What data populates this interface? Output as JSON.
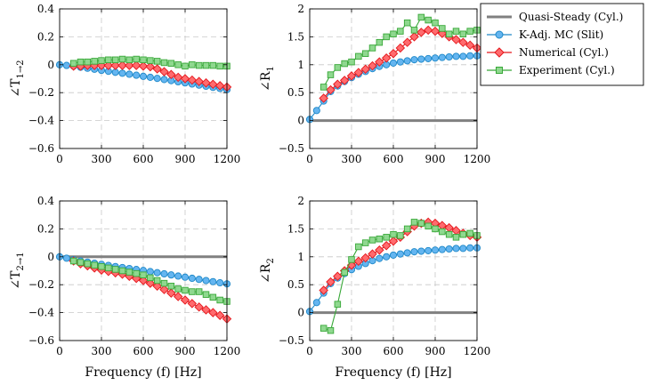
{
  "legend": {
    "position": "top-right",
    "entries": [
      {
        "label": "Quasi-Steady (Cyl.)",
        "color": "#808080",
        "marker": "none"
      },
      {
        "label": "K-Adj. MC (Slit)",
        "color": "#1e88c8",
        "fill": "#64b5f0",
        "marker": "circle"
      },
      {
        "label": "Numerical (Cyl.)",
        "color": "#e5161b",
        "fill": "#ff6b6e",
        "marker": "diamond"
      },
      {
        "label": "Experiment (Cyl.)",
        "color": "#38a838",
        "fill": "#8fd88f",
        "marker": "square"
      }
    ]
  },
  "chart_data": [
    {
      "type": "line",
      "ylabel": "∠T",
      "ylabel_sub": "1→2",
      "xlabel": "",
      "xlim": [
        0,
        1200
      ],
      "ylim": [
        -0.6,
        0.4
      ],
      "xticks": [
        0,
        300,
        600,
        900,
        1200
      ],
      "yticks": [
        -0.6,
        -0.4,
        -0.2,
        0,
        0.2,
        0.4
      ],
      "ytick_labels": [
        "−0.6",
        "−0.4",
        "−0.2",
        "0",
        "0.2",
        "0.4"
      ],
      "grid": true,
      "series": [
        {
          "name": "K-Adj. MC (Slit)",
          "x": [
            0,
            50,
            100,
            150,
            200,
            250,
            300,
            350,
            400,
            450,
            500,
            550,
            600,
            650,
            700,
            750,
            800,
            850,
            900,
            950,
            1000,
            1050,
            1100,
            1150,
            1200
          ],
          "y": [
            0,
            -0.005,
            -0.01,
            -0.018,
            -0.025,
            -0.032,
            -0.04,
            -0.047,
            -0.054,
            -0.061,
            -0.068,
            -0.075,
            -0.083,
            -0.09,
            -0.098,
            -0.106,
            -0.114,
            -0.122,
            -0.13,
            -0.138,
            -0.146,
            -0.154,
            -0.162,
            -0.17,
            -0.178
          ]
        },
        {
          "name": "Numerical (Cyl.)",
          "x": [
            100,
            150,
            200,
            250,
            300,
            350,
            400,
            450,
            500,
            550,
            600,
            650,
            700,
            750,
            800,
            850,
            900,
            950,
            1000,
            1050,
            1100,
            1150,
            1200
          ],
          "y": [
            -0.01,
            -0.01,
            -0.005,
            -0.005,
            -0.005,
            -0.005,
            -0.005,
            -0.005,
            -0.005,
            -0.005,
            -0.01,
            -0.015,
            -0.03,
            -0.05,
            -0.07,
            -0.09,
            -0.1,
            -0.11,
            -0.12,
            -0.13,
            -0.14,
            -0.15,
            -0.16
          ]
        },
        {
          "name": "Experiment (Cyl.)",
          "x": [
            100,
            150,
            200,
            250,
            300,
            350,
            400,
            450,
            500,
            550,
            600,
            650,
            700,
            750,
            800,
            850,
            900,
            950,
            1000,
            1050,
            1100,
            1150,
            1200
          ],
          "y": [
            0.01,
            0.02,
            0.02,
            0.025,
            0.03,
            0.035,
            0.035,
            0.04,
            0.035,
            0.04,
            0.035,
            0.03,
            0.025,
            0.015,
            0.01,
            0,
            -0.01,
            0,
            -0.005,
            -0.005,
            -0.005,
            -0.01,
            -0.01
          ]
        }
      ]
    },
    {
      "type": "line",
      "ylabel": "∠R",
      "ylabel_sub": "1",
      "xlabel": "",
      "xlim": [
        0,
        1200
      ],
      "ylim": [
        -0.5,
        2
      ],
      "xticks": [
        0,
        300,
        600,
        900,
        1200
      ],
      "yticks": [
        -0.5,
        0,
        0.5,
        1,
        1.5,
        2
      ],
      "ytick_labels": [
        "−0.5",
        "0",
        "0.5",
        "1",
        "1.5",
        "2"
      ],
      "grid": true,
      "series": [
        {
          "name": "Quasi-Steady (Cyl.)",
          "x": [
            0,
            1200
          ],
          "y": [
            0,
            0
          ]
        },
        {
          "name": "K-Adj. MC (Slit)",
          "x": [
            0,
            50,
            100,
            150,
            200,
            250,
            300,
            350,
            400,
            450,
            500,
            550,
            600,
            650,
            700,
            750,
            800,
            850,
            900,
            950,
            1000,
            1050,
            1100,
            1150,
            1200
          ],
          "y": [
            0.02,
            0.18,
            0.35,
            0.52,
            0.62,
            0.7,
            0.77,
            0.83,
            0.88,
            0.93,
            0.97,
            1.0,
            1.03,
            1.05,
            1.07,
            1.09,
            1.1,
            1.11,
            1.12,
            1.13,
            1.14,
            1.15,
            1.15,
            1.16,
            1.16
          ]
        },
        {
          "name": "Numerical (Cyl.)",
          "x": [
            100,
            150,
            200,
            250,
            300,
            350,
            400,
            450,
            500,
            550,
            600,
            650,
            700,
            750,
            800,
            850,
            900,
            950,
            1000,
            1050,
            1100,
            1150,
            1200
          ],
          "y": [
            0.4,
            0.55,
            0.65,
            0.72,
            0.8,
            0.86,
            0.92,
            0.98,
            1.05,
            1.12,
            1.2,
            1.3,
            1.4,
            1.5,
            1.58,
            1.62,
            1.6,
            1.56,
            1.5,
            1.45,
            1.4,
            1.35,
            1.3
          ]
        },
        {
          "name": "Experiment (Cyl.)",
          "x": [
            100,
            150,
            200,
            250,
            300,
            350,
            400,
            450,
            500,
            550,
            600,
            650,
            700,
            750,
            800,
            850,
            900,
            950,
            1000,
            1050,
            1100,
            1150,
            1200
          ],
          "y": [
            0.6,
            0.82,
            0.95,
            1.02,
            1.05,
            1.15,
            1.2,
            1.3,
            1.4,
            1.5,
            1.55,
            1.6,
            1.75,
            1.62,
            1.85,
            1.8,
            1.75,
            1.65,
            1.55,
            1.6,
            1.55,
            1.6,
            1.62
          ]
        }
      ]
    },
    {
      "type": "line",
      "ylabel": "∠T",
      "ylabel_sub": "2→1",
      "xlabel": "Frequency (f) [Hz]",
      "xlim": [
        0,
        1200
      ],
      "ylim": [
        -0.6,
        0.4
      ],
      "xticks": [
        0,
        300,
        600,
        900,
        1200
      ],
      "yticks": [
        -0.6,
        -0.4,
        -0.2,
        0,
        0.2,
        0.4
      ],
      "ytick_labels": [
        "−0.6",
        "−0.4",
        "−0.2",
        "0",
        "0.2",
        "0.4"
      ],
      "grid": true,
      "series": [
        {
          "name": "Quasi-Steady (Cyl.)",
          "x": [
            0,
            1200
          ],
          "y": [
            0,
            0
          ]
        },
        {
          "name": "K-Adj. MC (Slit)",
          "x": [
            0,
            50,
            100,
            150,
            200,
            250,
            300,
            350,
            400,
            450,
            500,
            550,
            600,
            650,
            700,
            750,
            800,
            850,
            900,
            950,
            1000,
            1050,
            1100,
            1150,
            1200
          ],
          "y": [
            0,
            -0.01,
            -0.02,
            -0.03,
            -0.038,
            -0.046,
            -0.054,
            -0.062,
            -0.07,
            -0.077,
            -0.084,
            -0.091,
            -0.098,
            -0.106,
            -0.114,
            -0.122,
            -0.13,
            -0.138,
            -0.146,
            -0.154,
            -0.162,
            -0.17,
            -0.178,
            -0.186,
            -0.194
          ]
        },
        {
          "name": "Numerical (Cyl.)",
          "x": [
            100,
            150,
            200,
            250,
            300,
            350,
            400,
            450,
            500,
            550,
            600,
            650,
            700,
            750,
            800,
            850,
            900,
            950,
            1000,
            1050,
            1100,
            1150,
            1200
          ],
          "y": [
            -0.03,
            -0.05,
            -0.065,
            -0.08,
            -0.095,
            -0.105,
            -0.115,
            -0.125,
            -0.14,
            -0.155,
            -0.17,
            -0.19,
            -0.21,
            -0.235,
            -0.26,
            -0.285,
            -0.31,
            -0.335,
            -0.36,
            -0.38,
            -0.4,
            -0.42,
            -0.445
          ]
        },
        {
          "name": "Experiment (Cyl.)",
          "x": [
            100,
            150,
            200,
            250,
            300,
            350,
            400,
            450,
            500,
            550,
            600,
            650,
            700,
            750,
            800,
            850,
            900,
            950,
            1000,
            1050,
            1100,
            1150,
            1200
          ],
          "y": [
            -0.03,
            -0.04,
            -0.05,
            -0.06,
            -0.07,
            -0.08,
            -0.09,
            -0.1,
            -0.11,
            -0.12,
            -0.13,
            -0.15,
            -0.17,
            -0.19,
            -0.21,
            -0.23,
            -0.24,
            -0.25,
            -0.25,
            -0.27,
            -0.29,
            -0.31,
            -0.32
          ]
        }
      ]
    },
    {
      "type": "line",
      "ylabel": "∠R",
      "ylabel_sub": "2",
      "xlabel": "Frequency (f) [Hz]",
      "xlim": [
        0,
        1200
      ],
      "ylim": [
        -0.5,
        2
      ],
      "xticks": [
        0,
        300,
        600,
        900,
        1200
      ],
      "yticks": [
        -0.5,
        0,
        0.5,
        1,
        1.5,
        2
      ],
      "ytick_labels": [
        "−0.5",
        "0",
        "0.5",
        "1",
        "1.5",
        "2"
      ],
      "grid": true,
      "series": [
        {
          "name": "Quasi-Steady (Cyl.)",
          "x": [
            0,
            1200
          ],
          "y": [
            0,
            0
          ]
        },
        {
          "name": "K-Adj. MC (Slit)",
          "x": [
            0,
            50,
            100,
            150,
            200,
            250,
            300,
            350,
            400,
            450,
            500,
            550,
            600,
            650,
            700,
            750,
            800,
            850,
            900,
            950,
            1000,
            1050,
            1100,
            1150,
            1200
          ],
          "y": [
            0.02,
            0.18,
            0.35,
            0.52,
            0.62,
            0.7,
            0.77,
            0.83,
            0.88,
            0.93,
            0.97,
            1.0,
            1.03,
            1.05,
            1.07,
            1.09,
            1.1,
            1.11,
            1.12,
            1.13,
            1.14,
            1.15,
            1.15,
            1.16,
            1.16
          ]
        },
        {
          "name": "Numerical (Cyl.)",
          "x": [
            100,
            150,
            200,
            250,
            300,
            350,
            400,
            450,
            500,
            550,
            600,
            650,
            700,
            750,
            800,
            850,
            900,
            950,
            1000,
            1050,
            1100,
            1150,
            1200
          ],
          "y": [
            0.4,
            0.55,
            0.65,
            0.75,
            0.85,
            0.92,
            0.98,
            1.05,
            1.12,
            1.2,
            1.28,
            1.35,
            1.45,
            1.55,
            1.6,
            1.62,
            1.6,
            1.56,
            1.52,
            1.47,
            1.42,
            1.38,
            1.35
          ]
        },
        {
          "name": "Experiment (Cyl.)",
          "x": [
            100,
            150,
            200,
            250,
            300,
            350,
            400,
            450,
            500,
            550,
            600,
            650,
            700,
            750,
            800,
            850,
            900,
            950,
            1000,
            1050,
            1100,
            1150,
            1200
          ],
          "y": [
            -0.28,
            -0.32,
            0.15,
            0.72,
            0.95,
            1.18,
            1.25,
            1.3,
            1.32,
            1.35,
            1.4,
            1.38,
            1.5,
            1.62,
            1.6,
            1.55,
            1.5,
            1.45,
            1.4,
            1.35,
            1.4,
            1.42,
            1.38
          ]
        }
      ]
    }
  ]
}
